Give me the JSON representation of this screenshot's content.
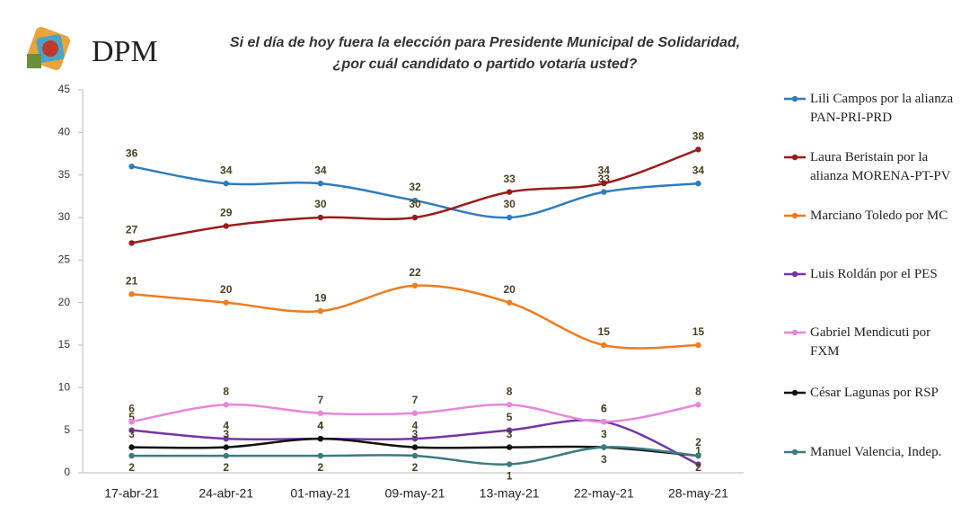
{
  "header": {
    "logo": "DPM"
  },
  "chart_data": {
    "type": "line",
    "title": "Si el día de hoy fuera la elección para Presidente Municipal de Solidaridad,",
    "subtitle": "¿por cuál candidato o partido votaría usted?",
    "categories": [
      "17-abr-21",
      "24-abr-21",
      "01-may-21",
      "09-may-21",
      "13-may-21",
      "22-may-21",
      "28-may-21"
    ],
    "ylim": [
      0,
      45
    ],
    "yticks": [
      0,
      5,
      10,
      15,
      20,
      25,
      30,
      35,
      40,
      45
    ],
    "series": [
      {
        "name": "Lili Campos por la alianza PAN-PRI-PRD",
        "color": "#2e7cbf",
        "values": [
          36,
          34,
          34,
          32,
          30,
          33,
          34
        ]
      },
      {
        "name": "Laura Beristain por la alianza MORENA-PT-PV",
        "color": "#9b1b1b",
        "values": [
          27,
          29,
          30,
          30,
          33,
          34,
          38
        ]
      },
      {
        "name": "Marciano Toledo por MC",
        "color": "#f07c1e",
        "values": [
          21,
          20,
          19,
          22,
          20,
          15,
          15
        ]
      },
      {
        "name": "Luis Roldán por el PES",
        "color": "#7434a6",
        "values": [
          5,
          4,
          4,
          4,
          5,
          6,
          1
        ]
      },
      {
        "name": "Gabriel Mendicuti por FXM",
        "color": "#e886dc",
        "values": [
          6,
          8,
          7,
          7,
          8,
          6,
          8
        ]
      },
      {
        "name": "César Lagunas por RSP",
        "color": "#111111",
        "values": [
          3,
          3,
          4,
          3,
          3,
          3,
          2
        ]
      },
      {
        "name": "Manuel Valencia, Indep.",
        "color": "#3b7c80",
        "values": [
          2,
          2,
          2,
          2,
          1,
          3,
          2
        ]
      }
    ]
  }
}
